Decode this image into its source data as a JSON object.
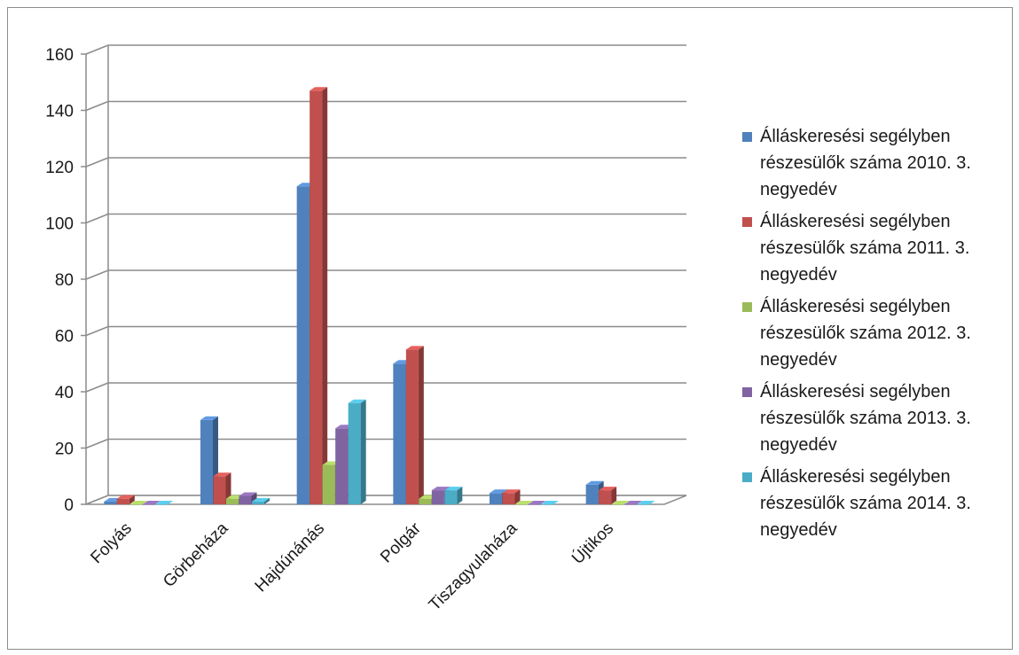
{
  "chart_data": {
    "type": "bar",
    "title": "",
    "xlabel": "",
    "ylabel": "",
    "ylim": [
      0,
      160
    ],
    "yticks": [
      0,
      20,
      40,
      60,
      80,
      100,
      120,
      140,
      160
    ],
    "grid": true,
    "legend_position": "right",
    "categories": [
      "Folyás",
      "Görbeháza",
      "Hajdúnánás",
      "Polgár",
      "Tiszagyulaháza",
      "Újtikos"
    ],
    "series": [
      {
        "name": "Álláskeresési segélyben részesülők száma 2010. 3. negyedév",
        "color": "#4f81bd",
        "values": [
          1,
          30,
          113,
          50,
          4,
          7
        ]
      },
      {
        "name": "Álláskeresési segélyben részesülők száma 2011. 3. negyedév",
        "color": "#c0504d",
        "values": [
          2,
          10,
          147,
          55,
          4,
          5
        ]
      },
      {
        "name": "Álláskeresési segélyben részesülők száma 2012. 3. negyedév",
        "color": "#9bbb59",
        "values": [
          0,
          2,
          14,
          2,
          0,
          0
        ]
      },
      {
        "name": "Álláskeresési segélyben részesülők száma 2013. 3. negyedév",
        "color": "#8064a2",
        "values": [
          0,
          3,
          27,
          5,
          0,
          0
        ]
      },
      {
        "name": "Álláskeresési segélyben részesülők száma 2014. 3. negyedév",
        "color": "#4bacc6",
        "values": [
          0,
          1,
          36,
          5,
          0,
          0
        ]
      }
    ],
    "legend_lines": [
      [
        "Álláskeresési segélyben",
        "részesülők száma 2010. 3.",
        "negyedév"
      ],
      [
        "Álláskeresési segélyben",
        "részesülők száma 2011. 3.",
        "negyedév"
      ],
      [
        "Álláskeresési segélyben",
        "részesülők száma 2012. 3.",
        "negyedév"
      ],
      [
        "Álláskeresési segélyben",
        "részesülők száma 2013. 3.",
        "negyedév"
      ],
      [
        "Álláskeresési segélyben",
        "részesülők száma 2014. 3.",
        "negyedév"
      ]
    ]
  }
}
